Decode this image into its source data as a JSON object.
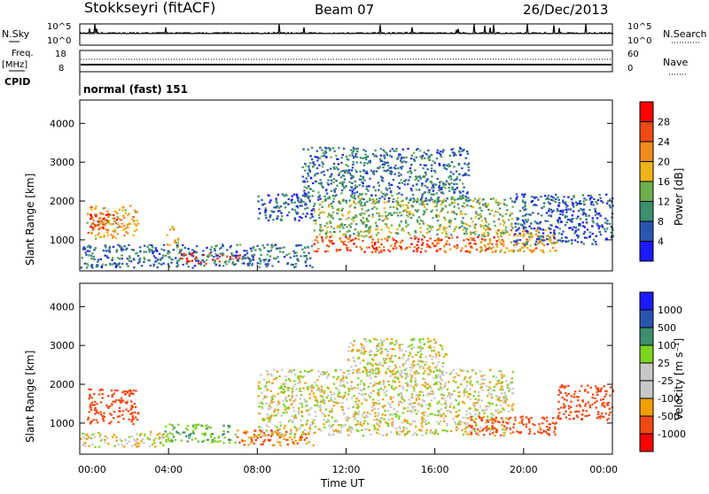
{
  "header": {
    "station": "Stokkseyri (fitACF)",
    "beam": "Beam 07",
    "date": "26/Dec/2013"
  },
  "status_panels": {
    "nsky_label": "N.Sky",
    "nsky_ticks": [
      "10^5",
      "10^0"
    ],
    "nsearch_label": "N.Search",
    "nsearch_ticks": [
      "10^5",
      "10^0"
    ],
    "freq_label": "Freq.",
    "freq_unit": "[MHz]",
    "freq_ticks": [
      "18",
      "8"
    ],
    "nave_label": "Nave",
    "nave_ticks": [
      "60",
      "0"
    ],
    "cpid_label": "CPID",
    "cpid_text": "normal (fast) 151"
  },
  "colors": {
    "power_scale": [
      "#1a1aff",
      "#2a55b0",
      "#3d8f6e",
      "#6fae4f",
      "#f0b41a",
      "#f08c1a",
      "#f04a14",
      "#ff0000"
    ],
    "velocity_scale": [
      "#ff0000",
      "#f04a14",
      "#f0a000",
      "#c8c8c8",
      "#c8c8c8",
      "#7ed321",
      "#3d8f6e",
      "#2a55b0",
      "#1a1aff"
    ],
    "ground_scatter": "#c8c8c8"
  },
  "chart_data": [
    {
      "type": "heatmap",
      "name": "power",
      "ylabel": "Slant Range [km]",
      "yticks": [
        "1000",
        "2000",
        "3000",
        "4000"
      ],
      "ylim": [
        200,
        4600
      ],
      "colorbar_label": "Power [dB]",
      "colorbar_ticks": [
        "4",
        "8",
        "12",
        "16",
        "20",
        "24",
        "28"
      ],
      "clim": [
        0,
        32
      ],
      "regions": [
        {
          "t0": 0.3,
          "t1": 2.6,
          "r0": 1050,
          "r1": 1900,
          "v": 20
        },
        {
          "t0": 0.3,
          "t1": 1.8,
          "r0": 1200,
          "r1": 1700,
          "v": 26
        },
        {
          "t0": 3.9,
          "t1": 4.4,
          "r0": 800,
          "r1": 1400,
          "v": 18
        },
        {
          "t0": 4.5,
          "t1": 7.2,
          "r0": 400,
          "r1": 700,
          "v": 28
        },
        {
          "t0": 0.0,
          "t1": 10.5,
          "r0": 300,
          "r1": 900,
          "v": 8
        },
        {
          "t0": 10.5,
          "t1": 18.8,
          "r0": 700,
          "r1": 1100,
          "v": 26
        },
        {
          "t0": 10.5,
          "t1": 19.5,
          "r0": 1100,
          "r1": 2100,
          "v": 14
        },
        {
          "t0": 10.0,
          "t1": 17.5,
          "r0": 2000,
          "r1": 3400,
          "v": 8
        },
        {
          "t0": 18.0,
          "t1": 21.5,
          "r0": 700,
          "r1": 1300,
          "v": 20
        },
        {
          "t0": 19.5,
          "t1": 24.0,
          "r0": 900,
          "r1": 2200,
          "v": 6
        },
        {
          "t0": 8.0,
          "t1": 10.5,
          "r0": 1500,
          "r1": 2200,
          "v": 6
        }
      ]
    },
    {
      "type": "heatmap",
      "name": "velocity",
      "xlabel": "Time UT",
      "xticks": [
        "00:00",
        "04:00",
        "08:00",
        "12:00",
        "16:00",
        "20:00",
        "00:00"
      ],
      "xlim": [
        0,
        24
      ],
      "ylabel": "Slant Range [km]",
      "yticks": [
        "1000",
        "2000",
        "3000",
        "4000"
      ],
      "ylim": [
        200,
        4600
      ],
      "colorbar_label": "Velocity [m s⁻¹]",
      "colorbar_ticks": [
        "1000",
        "500",
        "100",
        "25",
        "-25",
        "-100",
        "-500",
        "-1000"
      ],
      "regions": [
        {
          "t0": 0.3,
          "t1": 2.6,
          "r0": 1000,
          "r1": 1900,
          "v": -200
        },
        {
          "t0": 0.0,
          "t1": 4.0,
          "r0": 400,
          "r1": 800,
          "v": 0
        },
        {
          "t0": 3.8,
          "t1": 7.0,
          "r0": 500,
          "r1": 1000,
          "v": 80
        },
        {
          "t0": 7.0,
          "t1": 10.5,
          "r0": 450,
          "r1": 850,
          "v": -100
        },
        {
          "t0": 8.0,
          "t1": 19.5,
          "r0": 700,
          "r1": 2400,
          "v": 0
        },
        {
          "t0": 12.0,
          "t1": 16.5,
          "r0": 2300,
          "r1": 3200,
          "v": 0
        },
        {
          "t0": 17.5,
          "t1": 21.5,
          "r0": 700,
          "r1": 1200,
          "v": -150
        },
        {
          "t0": 21.5,
          "t1": 24.0,
          "r0": 1100,
          "r1": 2000,
          "v": -300
        }
      ]
    }
  ]
}
